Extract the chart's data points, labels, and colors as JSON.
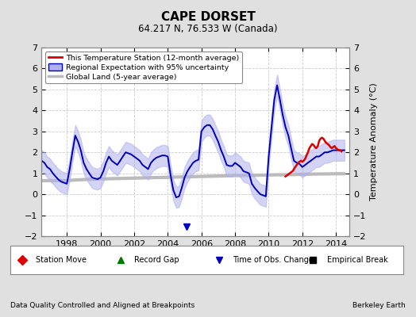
{
  "title": "CAPE DORSET",
  "subtitle": "64.217 N, 76.533 W (Canada)",
  "footer_left": "Data Quality Controlled and Aligned at Breakpoints",
  "footer_right": "Berkeley Earth",
  "ylabel": "Temperature Anomaly (°C)",
  "ylim": [
    -2,
    7
  ],
  "xlim": [
    1996.5,
    2014.8
  ],
  "yticks": [
    -2,
    -1,
    0,
    1,
    2,
    3,
    4,
    5,
    6,
    7
  ],
  "xticks": [
    1998,
    2000,
    2002,
    2004,
    2006,
    2008,
    2010,
    2012,
    2014
  ],
  "bg_color": "#e0e0e0",
  "plot_bg_color": "#ffffff",
  "blue_line_color": "#0000bb",
  "blue_fill_color": "#b0b0ee",
  "red_line_color": "#dd0000",
  "gray_line_color": "#bbbbbb",
  "regional_x": [
    1996.5,
    1996.67,
    1996.83,
    1997.0,
    1997.17,
    1997.33,
    1997.5,
    1997.67,
    1997.83,
    1998.0,
    1998.17,
    1998.33,
    1998.5,
    1998.67,
    1998.83,
    1999.0,
    1999.17,
    1999.33,
    1999.5,
    1999.67,
    1999.83,
    2000.0,
    2000.17,
    2000.33,
    2000.5,
    2000.67,
    2000.83,
    2001.0,
    2001.17,
    2001.33,
    2001.5,
    2001.67,
    2001.83,
    2002.0,
    2002.17,
    2002.33,
    2002.5,
    2002.67,
    2002.83,
    2003.0,
    2003.17,
    2003.33,
    2003.5,
    2003.67,
    2003.83,
    2004.0,
    2004.17,
    2004.33,
    2004.5,
    2004.67,
    2004.83,
    2005.0,
    2005.17,
    2005.33,
    2005.5,
    2005.67,
    2005.83,
    2006.0,
    2006.17,
    2006.33,
    2006.5,
    2006.67,
    2006.83,
    2007.0,
    2007.17,
    2007.33,
    2007.5,
    2007.67,
    2007.83,
    2008.0,
    2008.17,
    2008.33,
    2008.5,
    2008.67,
    2008.83,
    2009.0,
    2009.17,
    2009.33,
    2009.5,
    2009.67,
    2009.83,
    2010.0,
    2010.17,
    2010.33,
    2010.5,
    2010.67,
    2010.83,
    2011.0,
    2011.17,
    2011.33,
    2011.5,
    2011.67,
    2011.83,
    2012.0,
    2012.17,
    2012.33,
    2012.5,
    2012.67,
    2012.83,
    2013.0,
    2013.17,
    2013.33,
    2013.5,
    2013.67,
    2013.83,
    2014.0,
    2014.17,
    2014.33,
    2014.5
  ],
  "regional_y": [
    1.6,
    1.5,
    1.3,
    1.2,
    1.0,
    0.85,
    0.7,
    0.6,
    0.55,
    0.5,
    1.2,
    2.0,
    2.8,
    2.5,
    2.1,
    1.5,
    1.2,
    1.0,
    0.8,
    0.75,
    0.72,
    0.8,
    1.1,
    1.5,
    1.8,
    1.6,
    1.5,
    1.4,
    1.6,
    1.8,
    2.0,
    1.95,
    1.9,
    1.8,
    1.7,
    1.6,
    1.4,
    1.3,
    1.2,
    1.5,
    1.65,
    1.75,
    1.8,
    1.85,
    1.85,
    1.8,
    0.9,
    0.2,
    -0.15,
    -0.1,
    0.3,
    0.8,
    1.1,
    1.3,
    1.5,
    1.6,
    1.65,
    3.0,
    3.2,
    3.3,
    3.3,
    3.1,
    2.8,
    2.5,
    2.1,
    1.8,
    1.4,
    1.35,
    1.35,
    1.5,
    1.4,
    1.3,
    1.1,
    1.05,
    1.0,
    0.5,
    0.3,
    0.15,
    0.0,
    -0.05,
    -0.1,
    1.8,
    3.2,
    4.5,
    5.2,
    4.5,
    3.8,
    3.2,
    2.8,
    2.2,
    1.6,
    1.5,
    1.45,
    1.3,
    1.4,
    1.5,
    1.6,
    1.7,
    1.8,
    1.8,
    1.9,
    2.0,
    2.0,
    2.05,
    2.1,
    2.1,
    2.1,
    2.1,
    2.1
  ],
  "regional_upper": [
    2.1,
    2.0,
    1.8,
    1.7,
    1.5,
    1.35,
    1.2,
    1.1,
    1.05,
    1.0,
    1.7,
    2.5,
    3.3,
    3.0,
    2.6,
    2.0,
    1.7,
    1.5,
    1.3,
    1.25,
    1.22,
    1.3,
    1.6,
    2.0,
    2.3,
    2.1,
    2.0,
    1.9,
    2.1,
    2.3,
    2.5,
    2.45,
    2.4,
    2.3,
    2.2,
    2.1,
    1.9,
    1.8,
    1.7,
    2.0,
    2.15,
    2.25,
    2.3,
    2.35,
    2.35,
    2.3,
    1.4,
    0.7,
    0.35,
    0.4,
    0.8,
    1.3,
    1.6,
    1.8,
    2.0,
    2.1,
    2.15,
    3.5,
    3.7,
    3.8,
    3.8,
    3.6,
    3.3,
    3.0,
    2.6,
    2.3,
    1.9,
    1.85,
    1.85,
    2.0,
    1.9,
    1.8,
    1.6,
    1.55,
    1.5,
    1.0,
    0.8,
    0.65,
    0.5,
    0.45,
    0.4,
    2.3,
    3.7,
    5.0,
    5.7,
    5.0,
    4.3,
    3.7,
    3.3,
    2.7,
    2.1,
    2.0,
    1.95,
    1.8,
    1.9,
    2.0,
    2.1,
    2.2,
    2.3,
    2.3,
    2.4,
    2.5,
    2.5,
    2.55,
    2.6,
    2.6,
    2.6,
    2.6,
    2.6
  ],
  "regional_lower": [
    1.1,
    1.0,
    0.8,
    0.7,
    0.5,
    0.35,
    0.2,
    0.1,
    0.05,
    0.0,
    0.7,
    1.5,
    2.3,
    2.0,
    1.6,
    1.0,
    0.7,
    0.5,
    0.3,
    0.25,
    0.22,
    0.3,
    0.6,
    1.0,
    1.3,
    1.1,
    1.0,
    0.9,
    1.1,
    1.3,
    1.5,
    1.45,
    1.4,
    1.3,
    1.2,
    1.1,
    0.9,
    0.8,
    0.7,
    1.0,
    1.15,
    1.25,
    1.3,
    1.35,
    1.35,
    1.3,
    0.4,
    -0.3,
    -0.65,
    -0.6,
    -0.2,
    0.3,
    0.6,
    0.8,
    1.0,
    1.1,
    1.15,
    2.5,
    2.7,
    2.8,
    2.8,
    2.6,
    2.3,
    2.0,
    1.6,
    1.3,
    0.9,
    0.85,
    0.85,
    1.0,
    0.9,
    0.8,
    0.6,
    0.55,
    0.5,
    0.0,
    -0.2,
    -0.35,
    -0.5,
    -0.55,
    -0.6,
    1.3,
    2.7,
    4.0,
    4.7,
    4.0,
    3.3,
    2.7,
    2.3,
    1.7,
    1.1,
    1.0,
    0.95,
    0.8,
    0.9,
    1.0,
    1.1,
    1.2,
    1.3,
    1.3,
    1.4,
    1.5,
    1.5,
    1.55,
    1.6,
    1.6,
    1.6,
    1.6,
    1.6
  ],
  "station_x": [
    2011.0,
    2011.08,
    2011.17,
    2011.25,
    2011.33,
    2011.42,
    2011.5,
    2011.58,
    2011.67,
    2011.75,
    2011.83,
    2011.92,
    2012.0,
    2012.08,
    2012.17,
    2012.25,
    2012.33,
    2012.42,
    2012.5,
    2012.58,
    2012.67,
    2012.75,
    2012.83,
    2012.92,
    2013.0,
    2013.08,
    2013.17,
    2013.25,
    2013.33,
    2013.42,
    2013.5,
    2013.58,
    2013.67,
    2013.75,
    2013.83,
    2013.92,
    2014.0,
    2014.08,
    2014.17,
    2014.25,
    2014.33
  ],
  "station_y": [
    0.85,
    0.9,
    0.95,
    1.0,
    1.05,
    1.1,
    1.2,
    1.3,
    1.4,
    1.5,
    1.55,
    1.6,
    1.55,
    1.6,
    1.7,
    1.85,
    2.0,
    2.2,
    2.3,
    2.4,
    2.35,
    2.25,
    2.2,
    2.3,
    2.55,
    2.65,
    2.7,
    2.65,
    2.55,
    2.45,
    2.4,
    2.35,
    2.25,
    2.2,
    2.25,
    2.3,
    2.2,
    2.15,
    2.1,
    2.1,
    2.05
  ],
  "global_x": [
    1996.5,
    1997.0,
    1997.5,
    1998.0,
    1998.5,
    1999.0,
    1999.5,
    2000.0,
    2000.5,
    2001.0,
    2001.5,
    2002.0,
    2002.5,
    2003.0,
    2003.5,
    2004.0,
    2004.5,
    2005.0,
    2005.5,
    2006.0,
    2006.5,
    2007.0,
    2007.5,
    2008.0,
    2008.5,
    2009.0,
    2009.5,
    2010.0,
    2010.5,
    2011.0,
    2011.5,
    2012.0,
    2012.5,
    2013.0,
    2013.5,
    2014.0,
    2014.5
  ],
  "global_y": [
    0.65,
    0.65,
    0.65,
    0.65,
    0.68,
    0.7,
    0.72,
    0.73,
    0.74,
    0.75,
    0.76,
    0.77,
    0.78,
    0.79,
    0.8,
    0.81,
    0.82,
    0.83,
    0.84,
    0.85,
    0.86,
    0.87,
    0.88,
    0.89,
    0.9,
    0.9,
    0.91,
    0.92,
    0.93,
    0.93,
    0.94,
    0.95,
    0.96,
    0.97,
    0.97,
    0.98,
    0.98
  ],
  "obs_change_x": 2005.1,
  "obs_change_y": -1.55,
  "legend_items": [
    "This Temperature Station (12-month average)",
    "Regional Expectation with 95% uncertainty",
    "Global Land (5-year average)"
  ],
  "bottom_legend_labels": [
    "Station Move",
    "Record Gap",
    "Time of Obs. Change",
    "Empirical Break"
  ],
  "bottom_legend_colors": [
    "#dd0000",
    "#007700",
    "#0000bb",
    "#000000"
  ],
  "bottom_legend_markers": [
    "D",
    "^",
    "v",
    "s"
  ]
}
